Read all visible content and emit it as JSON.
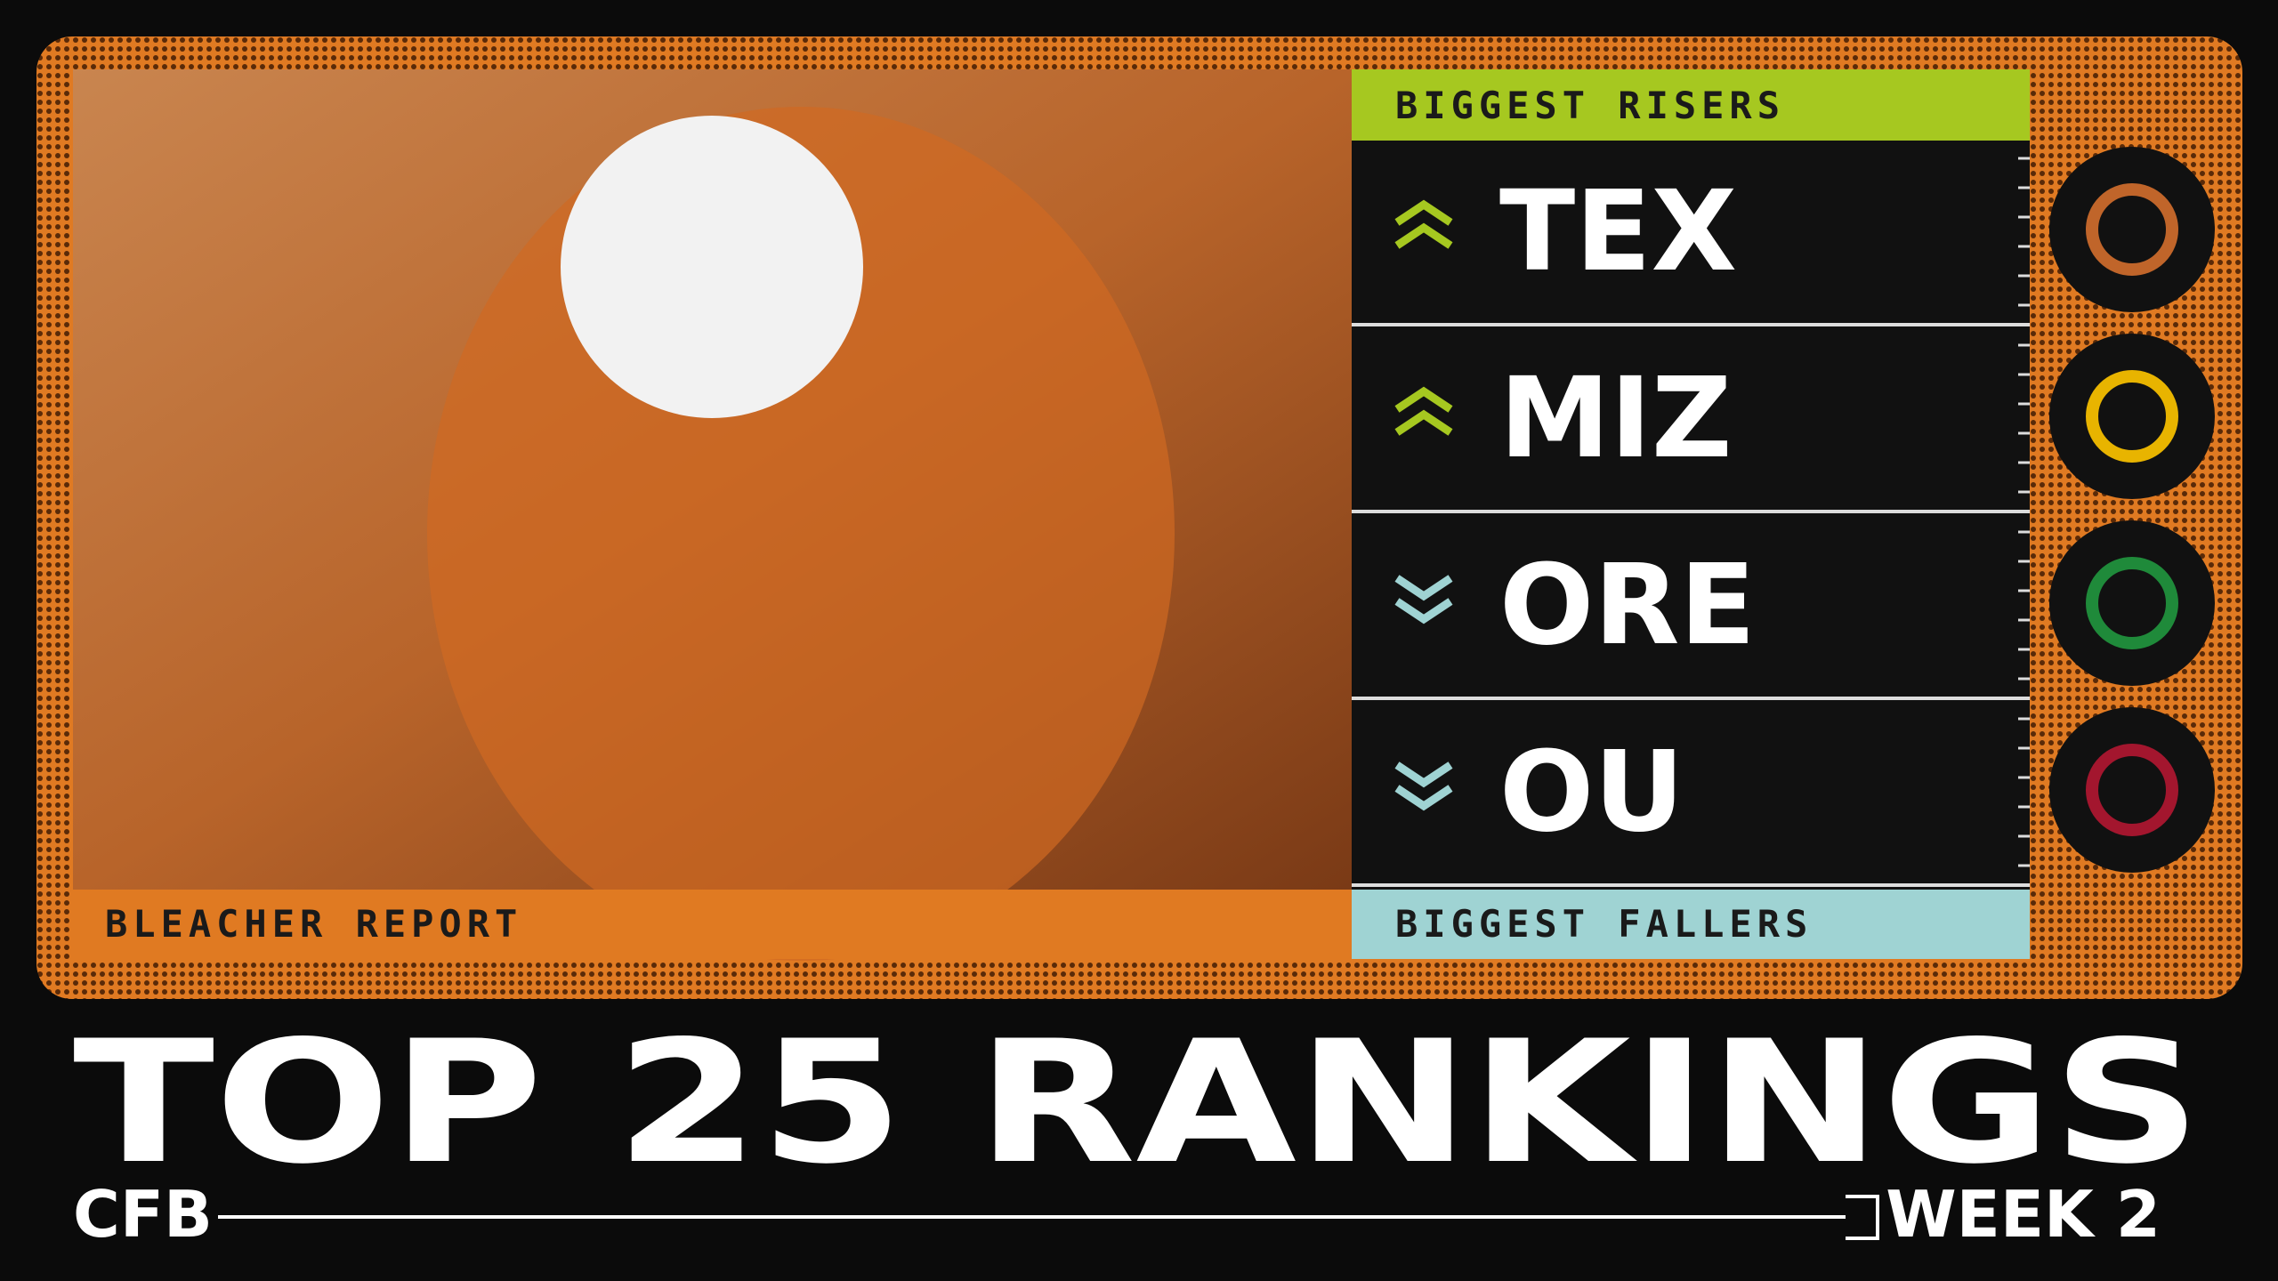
{
  "header": {
    "brand": "BLEACHER REPORT"
  },
  "risers": {
    "label": "BIGGEST RISERS",
    "teams": [
      "TEX",
      "MIZ"
    ]
  },
  "fallers": {
    "label": "BIGGEST FALLERS",
    "teams": [
      "ORE",
      "OU"
    ]
  },
  "footer": {
    "title": "TOP 25 RANKINGS",
    "sport": "CFB",
    "week": "WEEK 2"
  }
}
